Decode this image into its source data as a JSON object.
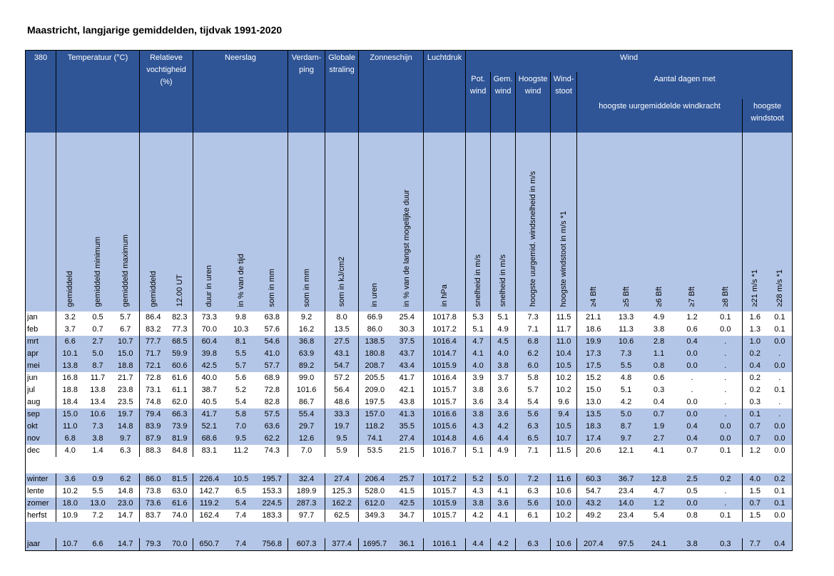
{
  "title": "Maastricht, langjarige gemiddelden, tijdvak 1991-2020",
  "header": {
    "station": "380",
    "temperatuur": "Temperatuur (°C)",
    "vochtigheid": "Relatieve vochtigheid (%)",
    "neerslag": "Neerslag",
    "verdamping": "Verdam-ping",
    "straling": "Globale straling",
    "zonneschijn": "Zonneschijn",
    "luchtdruk": "Luchtdruk",
    "wind": "Wind",
    "pot_wind": "Pot. wind",
    "gem_wind": "Gem. wind",
    "hoogste_wind": "Hoogste wind",
    "windstoot": "Wind-stoot",
    "aantal_dagen": "Aantal dagen met",
    "uurgemiddelde": "hoogste uurgemiddelde windkracht",
    "hoogste_windstoot": "hoogste windstoot"
  },
  "columns": [
    "gemiddeld",
    "gemiddeld minimum",
    "gemiddeld maximum",
    "gemiddeld",
    "12.00 UT",
    "duur in uren",
    "in % van de tijd",
    "som in mm",
    "som in mm",
    "som in kJ/cm2",
    "in uren",
    "in % van de langst mogelijke duur",
    "in hPa",
    "snelheid in m/s",
    "snelheid in m/s",
    "hoogste uurgemid. windsnelheid in m/s",
    "hoogste windstoot in m/s *1",
    "≥4 Bft",
    "≥5 Bft",
    "≥6 Bft",
    "≥7 Bft",
    "≥8 Bft",
    "≥21 m/s *1",
    "≥28 m/s *1"
  ],
  "rows": [
    {
      "label": "jan",
      "values": [
        "3.2",
        "0.5",
        "5.7",
        "86.4",
        "82.3",
        "73.3",
        "9.8",
        "63.8",
        "9.2",
        "8.0",
        "66.9",
        "25.4",
        "1017.8",
        "5.3",
        "5.1",
        "7.3",
        "11.5",
        "21.1",
        "13.3",
        "4.9",
        "1.2",
        "0.1",
        "1.6",
        "0.1"
      ]
    },
    {
      "label": "feb",
      "values": [
        "3.7",
        "0.7",
        "6.7",
        "83.2",
        "77.3",
        "70.0",
        "10.3",
        "57.6",
        "16.2",
        "13.5",
        "86.0",
        "30.3",
        "1017.2",
        "5.1",
        "4.9",
        "7.1",
        "11.7",
        "18.6",
        "11.3",
        "3.8",
        "0.6",
        "0.0",
        "1.3",
        "0.1"
      ]
    },
    {
      "label": "mrt",
      "values": [
        "6.6",
        "2.7",
        "10.7",
        "77.7",
        "68.5",
        "60.4",
        "8.1",
        "54.6",
        "36.8",
        "27.5",
        "138.5",
        "37.5",
        "1016.4",
        "4.7",
        "4.5",
        "6.8",
        "11.0",
        "19.9",
        "10.6",
        "2.8",
        "0.4",
        ".",
        "1.0",
        "0.0"
      ]
    },
    {
      "label": "apr",
      "values": [
        "10.1",
        "5.0",
        "15.0",
        "71.7",
        "59.9",
        "39.8",
        "5.5",
        "41.0",
        "63.9",
        "43.1",
        "180.8",
        "43.7",
        "1014.7",
        "4.1",
        "4.0",
        "6.2",
        "10.4",
        "17.3",
        "7.3",
        "1.1",
        "0.0",
        ".",
        "0.2",
        "."
      ]
    },
    {
      "label": "mei",
      "values": [
        "13.8",
        "8.7",
        "18.8",
        "72.1",
        "60.6",
        "42.5",
        "5.7",
        "57.7",
        "89.2",
        "54.7",
        "208.7",
        "43.4",
        "1015.9",
        "4.0",
        "3.8",
        "6.0",
        "10.5",
        "17.5",
        "5.5",
        "0.8",
        "0.0",
        ".",
        "0.4",
        "0.0"
      ]
    },
    {
      "label": "jun",
      "values": [
        "16.8",
        "11.7",
        "21.7",
        "72.8",
        "61.6",
        "40.0",
        "5.6",
        "68.9",
        "99.0",
        "57.2",
        "205.5",
        "41.7",
        "1016.4",
        "3.9",
        "3.7",
        "5.8",
        "10.2",
        "15.2",
        "4.8",
        "0.6",
        ".",
        ".",
        "0.2",
        "."
      ]
    },
    {
      "label": "jul",
      "values": [
        "18.8",
        "13.8",
        "23.8",
        "73.1",
        "61.1",
        "38.7",
        "5.2",
        "72.8",
        "101.6",
        "56.4",
        "209.0",
        "42.1",
        "1015.7",
        "3.8",
        "3.6",
        "5.7",
        "10.2",
        "15.0",
        "5.1",
        "0.3",
        ".",
        ".",
        "0.2",
        "0.1"
      ]
    },
    {
      "label": "aug",
      "values": [
        "18.4",
        "13.4",
        "23.5",
        "74.8",
        "62.0",
        "40.5",
        "5.4",
        "82.8",
        "86.7",
        "48.6",
        "197.5",
        "43.8",
        "1015.7",
        "3.6",
        "3.4",
        "5.4",
        "9.6",
        "13.0",
        "4.2",
        "0.4",
        "0.0",
        ".",
        "0.3",
        "."
      ]
    },
    {
      "label": "sep",
      "values": [
        "15.0",
        "10.6",
        "19.7",
        "79.4",
        "66.3",
        "41.7",
        "5.8",
        "57.5",
        "55.4",
        "33.3",
        "157.0",
        "41.3",
        "1016.6",
        "3.8",
        "3.6",
        "5.6",
        "9.4",
        "13.5",
        "5.0",
        "0.7",
        "0.0",
        ".",
        "0.1",
        "."
      ]
    },
    {
      "label": "okt",
      "values": [
        "11.0",
        "7.3",
        "14.8",
        "83.9",
        "73.9",
        "52.1",
        "7.0",
        "63.6",
        "29.7",
        "19.7",
        "118.2",
        "35.5",
        "1015.6",
        "4.3",
        "4.2",
        "6.3",
        "10.5",
        "18.3",
        "8.7",
        "1.9",
        "0.4",
        "0.0",
        "0.7",
        "0.0"
      ]
    },
    {
      "label": "nov",
      "values": [
        "6.8",
        "3.8",
        "9.7",
        "87.9",
        "81.9",
        "68.6",
        "9.5",
        "62.2",
        "12.6",
        "9.5",
        "74.1",
        "27.4",
        "1014.8",
        "4.6",
        "4.4",
        "6.5",
        "10.7",
        "17.4",
        "9.7",
        "2.7",
        "0.4",
        "0.0",
        "0.7",
        "0.0"
      ]
    },
    {
      "label": "dec",
      "values": [
        "4.0",
        "1.4",
        "6.3",
        "88.3",
        "84.8",
        "83.1",
        "11.2",
        "74.3",
        "7.0",
        "5.9",
        "53.5",
        "21.5",
        "1016.7",
        "5.1",
        "4.9",
        "7.1",
        "11.5",
        "20.6",
        "12.1",
        "4.1",
        "0.7",
        "0.1",
        "1.2",
        "0.0"
      ]
    },
    {
      "label": "winter",
      "values": [
        "3.6",
        "0.9",
        "6.2",
        "86.0",
        "81.5",
        "226.4",
        "10.5",
        "195.7",
        "32.4",
        "27.4",
        "206.4",
        "25.7",
        "1017.2",
        "5.2",
        "5.0",
        "7.2",
        "11.6",
        "60.3",
        "36.7",
        "12.8",
        "2.5",
        "0.2",
        "4.0",
        "0.2"
      ]
    },
    {
      "label": "lente",
      "values": [
        "10.2",
        "5.5",
        "14.8",
        "73.8",
        "63.0",
        "142.7",
        "6.5",
        "153.3",
        "189.9",
        "125.3",
        "528.0",
        "41.5",
        "1015.7",
        "4.3",
        "4.1",
        "6.3",
        "10.6",
        "54.7",
        "23.4",
        "4.7",
        "0.5",
        ".",
        "1.5",
        "0.1"
      ]
    },
    {
      "label": "zomer",
      "values": [
        "18.0",
        "13.0",
        "23.0",
        "73.6",
        "61.6",
        "119.2",
        "5.4",
        "224.5",
        "287.3",
        "162.2",
        "612.0",
        "42.5",
        "1015.9",
        "3.8",
        "3.6",
        "5.6",
        "10.0",
        "43.2",
        "14.0",
        "1.2",
        "0.0",
        ".",
        "0.7",
        "0.1"
      ]
    },
    {
      "label": "herfst",
      "values": [
        "10.9",
        "7.2",
        "14.7",
        "83.7",
        "74.0",
        "162.4",
        "7.4",
        "183.3",
        "97.7",
        "62.5",
        "349.3",
        "34.7",
        "1015.7",
        "4.2",
        "4.1",
        "6.1",
        "10.2",
        "49.2",
        "23.4",
        "5.4",
        "0.8",
        "0.1",
        "1.5",
        "0.0"
      ]
    },
    {
      "label": "jaar",
      "values": [
        "10.7",
        "6.6",
        "14.7",
        "79.3",
        "70.0",
        "650.7",
        "7.4",
        "756.8",
        "607.3",
        "377.4",
        "1695.7",
        "36.1",
        "1016.1",
        "4.4",
        "4.2",
        "6.3",
        "10.6",
        "207.4",
        "97.5",
        "24.1",
        "3.8",
        "0.3",
        "7.7",
        "0.4"
      ]
    }
  ]
}
